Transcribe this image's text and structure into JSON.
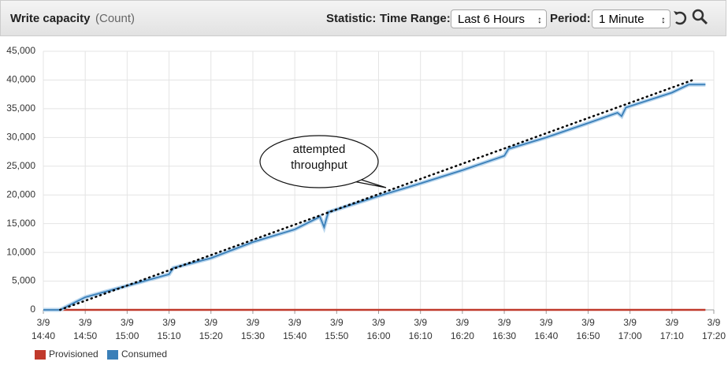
{
  "header": {
    "title": "Write capacity",
    "unit": "(Count)",
    "statistic_label": "Statistic:",
    "time_range_label": "Time Range:",
    "time_range_value": "Last 6 Hours",
    "period_label": "Period:",
    "period_value": "1 Minute"
  },
  "chart_data": {
    "type": "line",
    "xlim": [
      "3/9 14:40",
      "3/9 17:20"
    ],
    "xticks": [
      "3/9 14:40",
      "3/9 14:50",
      "3/9 15:00",
      "3/9 15:10",
      "3/9 15:20",
      "3/9 15:30",
      "3/9 15:40",
      "3/9 15:50",
      "3/9 16:00",
      "3/9 16:10",
      "3/9 16:20",
      "3/9 16:30",
      "3/9 16:40",
      "3/9 16:50",
      "3/9 17:00",
      "3/9 17:10",
      "3/9 17:20"
    ],
    "ylim": [
      0,
      45000
    ],
    "yticks": [
      0,
      {
        "value": 5000,
        "label": "5,000"
      },
      {
        "value": 10000,
        "label": "10,000"
      },
      {
        "value": 15000,
        "label": "15,000"
      },
      {
        "value": 20000,
        "label": "20,000"
      },
      {
        "value": 25000,
        "label": "25,000"
      },
      {
        "value": 30000,
        "label": "30,000"
      },
      {
        "value": 35000,
        "label": "35,000"
      },
      {
        "value": 40000,
        "label": "40,000"
      },
      {
        "value": 45000,
        "label": "45,000"
      }
    ],
    "grid": true,
    "series": [
      {
        "name": "Provisioned",
        "color": "#c0392b",
        "x": [
          "3/9 14:40",
          "3/9 17:18"
        ],
        "values": [
          0,
          0
        ]
      },
      {
        "name": "Consumed",
        "color": "#3a7fb8",
        "x": [
          "3/9 14:40",
          "3/9 14:44",
          "3/9 14:50",
          "3/9 15:00",
          "3/9 15:10",
          "3/9 15:11",
          "3/9 15:20",
          "3/9 15:30",
          "3/9 15:40",
          "3/9 15:46",
          "3/9 15:47",
          "3/9 15:48",
          "3/9 16:00",
          "3/9 16:10",
          "3/9 16:20",
          "3/9 16:30",
          "3/9 16:31",
          "3/9 16:40",
          "3/9 16:50",
          "3/9 16:57",
          "3/9 16:58",
          "3/9 16:59",
          "3/9 17:10",
          "3/9 17:14",
          "3/9 17:18"
        ],
        "values": [
          0,
          0,
          2200,
          4200,
          6200,
          7300,
          9000,
          11800,
          14000,
          16200,
          14400,
          17000,
          19800,
          22000,
          24300,
          26800,
          28000,
          30000,
          32500,
          34300,
          33700,
          35200,
          37800,
          39200,
          39200
        ]
      }
    ],
    "annotations": [
      {
        "text": "attempted throughput",
        "line_x": [
          "3/9 14:44",
          "3/9 17:15"
        ],
        "line_values": [
          0,
          40000
        ]
      }
    ],
    "legend": "bottom-left"
  }
}
